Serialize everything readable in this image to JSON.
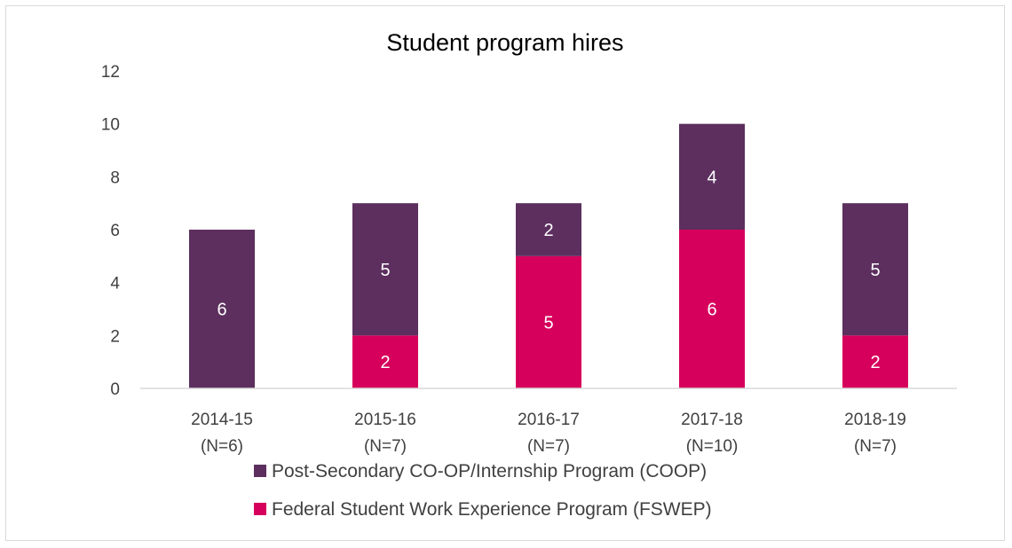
{
  "chart_data": {
    "type": "bar",
    "stacked": true,
    "title": "Student program hires",
    "xlabel": "",
    "ylabel": "",
    "ylim": [
      0,
      12
    ],
    "yticks": [
      0,
      2,
      4,
      6,
      8,
      10,
      12
    ],
    "grid": false,
    "legend_position": "bottom",
    "categories": [
      [
        "2014-15",
        "(N=6)"
      ],
      [
        "2015-16",
        "(N=7)"
      ],
      [
        "2016-17",
        "(N=7)"
      ],
      [
        "2017-18",
        "(N=10)"
      ],
      [
        "2018-19",
        "(N=7)"
      ]
    ],
    "series": [
      {
        "name": "Federal Student Work Experience Program (FSWEP)",
        "color": "#d6005c",
        "values": [
          0,
          2,
          5,
          6,
          2
        ]
      },
      {
        "name": "Post-Secondary CO-OP/Internship Program (COOP)",
        "color": "#5c2f5e",
        "values": [
          6,
          5,
          2,
          4,
          5
        ]
      }
    ],
    "legend_order": [
      1,
      0
    ]
  }
}
